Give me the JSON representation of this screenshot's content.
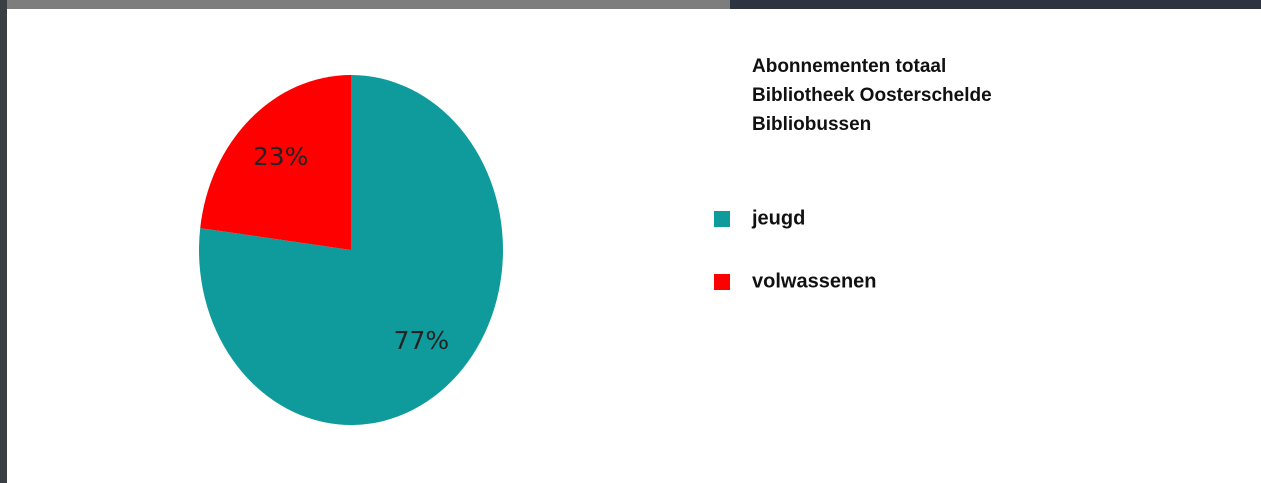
{
  "chart_data": {
    "type": "pie",
    "title": [
      "Abonnementen totaal",
      "Bibliotheek Oosterschelde",
      "Bibliobussen"
    ],
    "categories": [
      "jeugd",
      "volwassenen"
    ],
    "values": [
      77,
      23
    ],
    "value_labels": [
      "77%",
      "23%"
    ],
    "colors": [
      "#0f9b9b",
      "#ff0000"
    ],
    "legend": "right"
  }
}
